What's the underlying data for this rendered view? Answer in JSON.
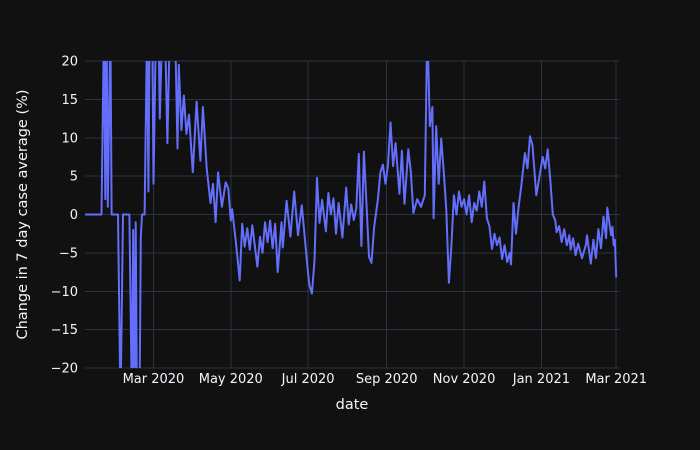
{
  "figure": {
    "background_color": "#111111",
    "grid_color": "#283442",
    "text_color": "#f2f5fa",
    "line_color": "#636efa"
  },
  "chart_data": {
    "type": "line",
    "title": "",
    "xlabel": "date",
    "ylabel": "Change in 7 day case average (%)",
    "legend": false,
    "grid": true,
    "ylim": [
      -20,
      20
    ],
    "x_domain": [
      "2020-01-07",
      "2021-03-04"
    ],
    "clip_note": "off-scale spikes beyond ±20% are clipped at the plot edge; they are stored here as ±25",
    "y_ticks": [
      {
        "value": 20,
        "label": "20"
      },
      {
        "value": 15,
        "label": "15"
      },
      {
        "value": 10,
        "label": "10"
      },
      {
        "value": 5,
        "label": "5"
      },
      {
        "value": 0,
        "label": "0"
      },
      {
        "value": -5,
        "label": "−5"
      },
      {
        "value": -10,
        "label": "−10"
      },
      {
        "value": -15,
        "label": "−15"
      },
      {
        "value": -20,
        "label": "−20"
      }
    ],
    "x_ticks": [
      {
        "date": "2020-03-01",
        "label": "Mar 2020"
      },
      {
        "date": "2020-05-01",
        "label": "May 2020"
      },
      {
        "date": "2020-07-01",
        "label": "Jul 2020"
      },
      {
        "date": "2020-09-01",
        "label": "Sep 2020"
      },
      {
        "date": "2020-11-01",
        "label": "Nov 2020"
      },
      {
        "date": "2021-01-01",
        "label": "Jan 2021"
      },
      {
        "date": "2021-03-01",
        "label": "Mar 2021"
      }
    ],
    "series": [
      {
        "name": "Change in 7 day case average (%)",
        "color": "#636efa",
        "points": [
          [
            "2020-01-07",
            0
          ],
          [
            "2020-01-14",
            0
          ],
          [
            "2020-01-20",
            0
          ],
          [
            "2020-01-22",
            25
          ],
          [
            "2020-01-23",
            2
          ],
          [
            "2020-01-24",
            25
          ],
          [
            "2020-01-25",
            1
          ],
          [
            "2020-01-27",
            25
          ],
          [
            "2020-01-28",
            0
          ],
          [
            "2020-02-02",
            0
          ],
          [
            "2020-02-04",
            -25
          ],
          [
            "2020-02-06",
            0
          ],
          [
            "2020-02-11",
            0
          ],
          [
            "2020-02-13",
            -25
          ],
          [
            "2020-02-14",
            -2
          ],
          [
            "2020-02-15",
            -25
          ],
          [
            "2020-02-16",
            -1
          ],
          [
            "2020-02-17",
            -25
          ],
          [
            "2020-02-19",
            -25
          ],
          [
            "2020-02-20",
            -3
          ],
          [
            "2020-02-21",
            0
          ],
          [
            "2020-02-23",
            0
          ],
          [
            "2020-02-25",
            25
          ],
          [
            "2020-02-26",
            3
          ],
          [
            "2020-02-27",
            25
          ],
          [
            "2020-02-29",
            25
          ],
          [
            "2020-03-01",
            4
          ],
          [
            "2020-03-03",
            25
          ],
          [
            "2020-03-05",
            25
          ],
          [
            "2020-03-06",
            12.5
          ],
          [
            "2020-03-08",
            25
          ],
          [
            "2020-03-10",
            25
          ],
          [
            "2020-03-12",
            9.3
          ],
          [
            "2020-03-14",
            25
          ],
          [
            "2020-03-16",
            25
          ],
          [
            "2020-03-18",
            25
          ],
          [
            "2020-03-20",
            8.6
          ],
          [
            "2020-03-21",
            19.5
          ],
          [
            "2020-03-23",
            11
          ],
          [
            "2020-03-25",
            15.5
          ],
          [
            "2020-03-27",
            10.5
          ],
          [
            "2020-03-29",
            13
          ],
          [
            "2020-04-01",
            5.5
          ],
          [
            "2020-04-04",
            14.7
          ],
          [
            "2020-04-07",
            7
          ],
          [
            "2020-04-09",
            14
          ],
          [
            "2020-04-12",
            6
          ],
          [
            "2020-04-15",
            1.5
          ],
          [
            "2020-04-17",
            4
          ],
          [
            "2020-04-19",
            -1
          ],
          [
            "2020-04-21",
            5.5
          ],
          [
            "2020-04-24",
            1
          ],
          [
            "2020-04-27",
            4.2
          ],
          [
            "2020-04-29",
            3.4
          ],
          [
            "2020-05-01",
            -0.8
          ],
          [
            "2020-05-02",
            0.7
          ],
          [
            "2020-05-05",
            -3.6
          ],
          [
            "2020-05-08",
            -8.6
          ],
          [
            "2020-05-10",
            -1.2
          ],
          [
            "2020-05-12",
            -4.2
          ],
          [
            "2020-05-14",
            -1.8
          ],
          [
            "2020-05-16",
            -4.6
          ],
          [
            "2020-05-18",
            -1.4
          ],
          [
            "2020-05-22",
            -6.8
          ],
          [
            "2020-05-24",
            -2.9
          ],
          [
            "2020-05-26",
            -5
          ],
          [
            "2020-05-28",
            -1
          ],
          [
            "2020-05-30",
            -3.6
          ],
          [
            "2020-06-01",
            -0.8
          ],
          [
            "2020-06-03",
            -4.4
          ],
          [
            "2020-06-05",
            -1.2
          ],
          [
            "2020-06-07",
            -7.5
          ],
          [
            "2020-06-10",
            -1
          ],
          [
            "2020-06-11",
            -4.3
          ],
          [
            "2020-06-14",
            1.8
          ],
          [
            "2020-06-17",
            -2.9
          ],
          [
            "2020-06-20",
            3
          ],
          [
            "2020-06-23",
            -2.7
          ],
          [
            "2020-06-26",
            1.2
          ],
          [
            "2020-06-29",
            -4.2
          ],
          [
            "2020-07-01",
            -7.7
          ],
          [
            "2020-07-02",
            -9.2
          ],
          [
            "2020-07-04",
            -10.3
          ],
          [
            "2020-07-06",
            -6
          ],
          [
            "2020-07-08",
            4.8
          ],
          [
            "2020-07-10",
            -1.1
          ],
          [
            "2020-07-12",
            1.9
          ],
          [
            "2020-07-15",
            -2.2
          ],
          [
            "2020-07-17",
            2.8
          ],
          [
            "2020-07-19",
            0
          ],
          [
            "2020-07-21",
            2.1
          ],
          [
            "2020-07-23",
            -2.5
          ],
          [
            "2020-07-25",
            1.5
          ],
          [
            "2020-07-28",
            -3
          ],
          [
            "2020-07-31",
            3.5
          ],
          [
            "2020-08-02",
            -1.3
          ],
          [
            "2020-08-04",
            1.3
          ],
          [
            "2020-08-06",
            -0.7
          ],
          [
            "2020-08-08",
            0.8
          ],
          [
            "2020-08-10",
            7.9
          ],
          [
            "2020-08-12",
            -4.1
          ],
          [
            "2020-08-14",
            8.2
          ],
          [
            "2020-08-16",
            1.6
          ],
          [
            "2020-08-18",
            -5.5
          ],
          [
            "2020-08-20",
            -6.3
          ],
          [
            "2020-08-22",
            -1.7
          ],
          [
            "2020-08-25",
            2
          ],
          [
            "2020-08-27",
            5.5
          ],
          [
            "2020-08-29",
            6.5
          ],
          [
            "2020-08-31",
            4
          ],
          [
            "2020-09-02",
            6.5
          ],
          [
            "2020-09-04",
            12
          ],
          [
            "2020-09-06",
            6.3
          ],
          [
            "2020-09-08",
            9.3
          ],
          [
            "2020-09-11",
            2.7
          ],
          [
            "2020-09-13",
            8.3
          ],
          [
            "2020-09-15",
            1.4
          ],
          [
            "2020-09-18",
            8.5
          ],
          [
            "2020-09-20",
            5.6
          ],
          [
            "2020-09-22",
            0.2
          ],
          [
            "2020-09-25",
            2
          ],
          [
            "2020-09-28",
            1
          ],
          [
            "2020-10-01",
            2.5
          ],
          [
            "2020-10-03",
            25
          ],
          [
            "2020-10-05",
            11.5
          ],
          [
            "2020-10-07",
            14
          ],
          [
            "2020-10-08",
            -0.5
          ],
          [
            "2020-10-10",
            11.5
          ],
          [
            "2020-10-12",
            4
          ],
          [
            "2020-10-14",
            9.9
          ],
          [
            "2020-10-16",
            5.5
          ],
          [
            "2020-10-18",
            0.6
          ],
          [
            "2020-10-20",
            -8.9
          ],
          [
            "2020-10-22",
            -4
          ],
          [
            "2020-10-24",
            2.5
          ],
          [
            "2020-10-26",
            0
          ],
          [
            "2020-10-28",
            3
          ],
          [
            "2020-10-30",
            1
          ],
          [
            "2020-11-01",
            2
          ],
          [
            "2020-11-03",
            0
          ],
          [
            "2020-11-05",
            2.5
          ],
          [
            "2020-11-07",
            -1
          ],
          [
            "2020-11-09",
            1.5
          ],
          [
            "2020-11-11",
            0.5
          ],
          [
            "2020-11-13",
            3
          ],
          [
            "2020-11-15",
            1
          ],
          [
            "2020-11-17",
            4.3
          ],
          [
            "2020-11-19",
            -0.5
          ],
          [
            "2020-11-21",
            -1.5
          ],
          [
            "2020-11-23",
            -4.5
          ],
          [
            "2020-11-25",
            -2.5
          ],
          [
            "2020-11-27",
            -4
          ],
          [
            "2020-11-29",
            -3
          ],
          [
            "2020-12-01",
            -5.8
          ],
          [
            "2020-12-03",
            -4
          ],
          [
            "2020-12-05",
            -6.2
          ],
          [
            "2020-12-07",
            -5
          ],
          [
            "2020-12-08",
            -6.5
          ],
          [
            "2020-12-10",
            1.5
          ],
          [
            "2020-12-12",
            -2.5
          ],
          [
            "2020-12-14",
            1
          ],
          [
            "2020-12-16",
            3.5
          ],
          [
            "2020-12-19",
            8
          ],
          [
            "2020-12-21",
            6
          ],
          [
            "2020-12-23",
            10.2
          ],
          [
            "2020-12-25",
            9
          ],
          [
            "2020-12-28",
            2.5
          ],
          [
            "2020-12-30",
            4.5
          ],
          [
            "2021-01-02",
            7.5
          ],
          [
            "2021-01-04",
            6
          ],
          [
            "2021-01-06",
            8.5
          ],
          [
            "2021-01-08",
            4.5
          ],
          [
            "2021-01-10",
            0
          ],
          [
            "2021-01-12",
            -0.8
          ],
          [
            "2021-01-13",
            -2.3
          ],
          [
            "2021-01-15",
            -1.5
          ],
          [
            "2021-01-17",
            -3.6
          ],
          [
            "2021-01-19",
            -1.9
          ],
          [
            "2021-01-21",
            -4
          ],
          [
            "2021-01-23",
            -2.7
          ],
          [
            "2021-01-24",
            -4.6
          ],
          [
            "2021-01-26",
            -3.1
          ],
          [
            "2021-01-28",
            -5.3
          ],
          [
            "2021-01-30",
            -3.8
          ],
          [
            "2021-02-02",
            -5.7
          ],
          [
            "2021-02-05",
            -4
          ],
          [
            "2021-02-06",
            -2.7
          ],
          [
            "2021-02-09",
            -6.4
          ],
          [
            "2021-02-11",
            -3.3
          ],
          [
            "2021-02-13",
            -5.7
          ],
          [
            "2021-02-15",
            -1.9
          ],
          [
            "2021-02-17",
            -4.4
          ],
          [
            "2021-02-19",
            -0.3
          ],
          [
            "2021-02-21",
            -3.1
          ],
          [
            "2021-02-22",
            0.9
          ],
          [
            "2021-02-25",
            -2.7
          ],
          [
            "2021-02-26",
            -1.6
          ],
          [
            "2021-02-27",
            -4
          ],
          [
            "2021-02-28",
            -3.3
          ],
          [
            "2021-03-01",
            -8.2
          ]
        ]
      }
    ]
  }
}
